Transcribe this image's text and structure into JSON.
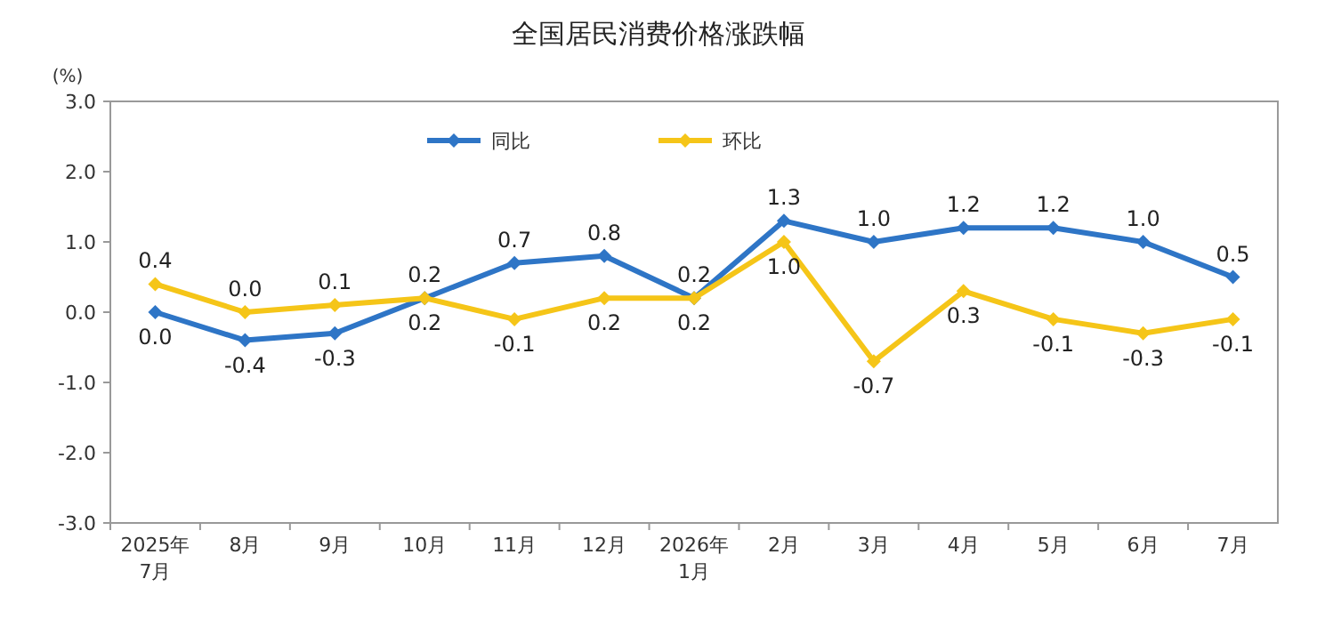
{
  "chart_data": {
    "type": "line",
    "title": "全国居民消费价格涨跌幅",
    "ylabel": "(%)",
    "categories": [
      "2025年\n7月",
      "8月",
      "9月",
      "10月",
      "11月",
      "12月",
      "2026年\n1月",
      "2月",
      "3月",
      "4月",
      "5月",
      "6月",
      "7月"
    ],
    "series": [
      {
        "name": "同比",
        "color": "#2e75c6",
        "values": [
          0.0,
          -0.4,
          -0.3,
          0.2,
          0.7,
          0.8,
          0.2,
          1.3,
          1.0,
          1.2,
          1.2,
          1.0,
          0.5
        ],
        "value_labels": [
          "0.0",
          "-0.4",
          "-0.3",
          "0.2",
          "0.7",
          "0.8",
          "0.2",
          "1.3",
          "1.0",
          "1.2",
          "1.2",
          "1.0",
          "0.5"
        ]
      },
      {
        "name": "环比",
        "color": "#f5c518",
        "values": [
          0.4,
          0.0,
          0.1,
          0.2,
          -0.1,
          0.2,
          0.2,
          1.0,
          -0.7,
          0.3,
          -0.1,
          -0.3,
          -0.1
        ],
        "value_labels": [
          "0.4",
          "0.0",
          "0.1",
          "0.2",
          "-0.1",
          "0.2",
          "0.2",
          "1.0",
          "-0.7",
          "0.3",
          "-0.1",
          "-0.3",
          "-0.1"
        ]
      }
    ],
    "ylim": [
      -3.0,
      3.0
    ],
    "yticks": [
      {
        "value": -3.0,
        "label": "-3.0"
      },
      {
        "value": -2.0,
        "label": "-2.0"
      },
      {
        "value": -1.0,
        "label": "-1.0"
      },
      {
        "value": 0.0,
        "label": "0.0"
      },
      {
        "value": 1.0,
        "label": "1.0"
      },
      {
        "value": 2.0,
        "label": "2.0"
      },
      {
        "value": 3.0,
        "label": "3.0"
      }
    ],
    "legend": "top",
    "marker": "diamond",
    "line_style": "solid"
  }
}
